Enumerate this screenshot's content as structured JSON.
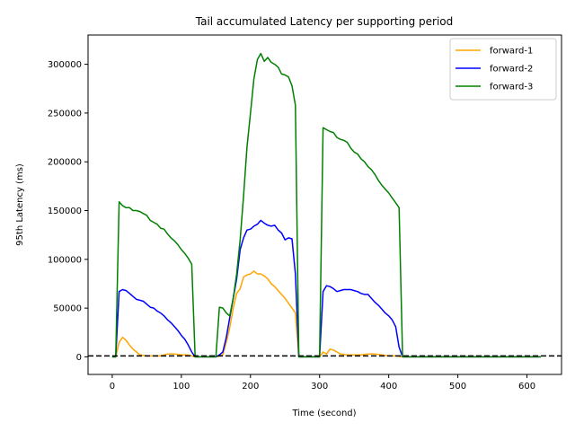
{
  "chart_data": {
    "type": "line",
    "title": "Tail accumulated Latency per supporting period",
    "xlabel": "Time (second)",
    "ylabel": "95th Latency (ms)",
    "xlim": [
      -35,
      650
    ],
    "ylim": [
      -18000,
      330000
    ],
    "xticks": [
      0,
      100,
      200,
      300,
      400,
      500,
      600
    ],
    "yticks": [
      0,
      50000,
      100000,
      150000,
      200000,
      250000,
      300000
    ],
    "grid": false,
    "legend_position": "top-right",
    "reference_line": {
      "y": 1000,
      "style": "dashed",
      "color": "#000000"
    },
    "series": [
      {
        "name": "forward-1",
        "color": "#ffa500",
        "points": [
          [
            0,
            0
          ],
          [
            5,
            0
          ],
          [
            10,
            15000
          ],
          [
            15,
            20000
          ],
          [
            20,
            17000
          ],
          [
            25,
            12000
          ],
          [
            30,
            8000
          ],
          [
            35,
            5000
          ],
          [
            40,
            2000
          ],
          [
            50,
            1000
          ],
          [
            60,
            1000
          ],
          [
            70,
            1000
          ],
          [
            80,
            3000
          ],
          [
            90,
            3000
          ],
          [
            100,
            2000
          ],
          [
            110,
            2000
          ],
          [
            120,
            0
          ],
          [
            150,
            0
          ],
          [
            155,
            1000
          ],
          [
            160,
            2000
          ],
          [
            165,
            15000
          ],
          [
            170,
            30000
          ],
          [
            175,
            50000
          ],
          [
            180,
            65000
          ],
          [
            185,
            70000
          ],
          [
            190,
            82000
          ],
          [
            195,
            84000
          ],
          [
            200,
            85000
          ],
          [
            205,
            88000
          ],
          [
            210,
            85000
          ],
          [
            215,
            85000
          ],
          [
            220,
            83000
          ],
          [
            225,
            80000
          ],
          [
            230,
            75000
          ],
          [
            235,
            72000
          ],
          [
            240,
            68000
          ],
          [
            245,
            64000
          ],
          [
            250,
            60000
          ],
          [
            255,
            55000
          ],
          [
            260,
            50000
          ],
          [
            265,
            45000
          ],
          [
            270,
            0
          ],
          [
            300,
            0
          ],
          [
            305,
            5000
          ],
          [
            310,
            3000
          ],
          [
            315,
            8000
          ],
          [
            320,
            7000
          ],
          [
            325,
            5000
          ],
          [
            330,
            3000
          ],
          [
            340,
            2000
          ],
          [
            350,
            2000
          ],
          [
            360,
            2000
          ],
          [
            370,
            3000
          ],
          [
            380,
            3000
          ],
          [
            390,
            2000
          ],
          [
            400,
            1000
          ],
          [
            410,
            1000
          ],
          [
            420,
            0
          ],
          [
            620,
            0
          ]
        ]
      },
      {
        "name": "forward-2",
        "color": "#0000ff",
        "points": [
          [
            0,
            0
          ],
          [
            5,
            0
          ],
          [
            10,
            67000
          ],
          [
            15,
            69000
          ],
          [
            20,
            68000
          ],
          [
            25,
            65000
          ],
          [
            30,
            62000
          ],
          [
            35,
            59000
          ],
          [
            40,
            58000
          ],
          [
            45,
            57000
          ],
          [
            50,
            54000
          ],
          [
            55,
            51000
          ],
          [
            60,
            50000
          ],
          [
            65,
            47000
          ],
          [
            70,
            45000
          ],
          [
            75,
            42000
          ],
          [
            80,
            38000
          ],
          [
            85,
            35000
          ],
          [
            90,
            31000
          ],
          [
            95,
            27000
          ],
          [
            100,
            22000
          ],
          [
            105,
            18000
          ],
          [
            110,
            12000
          ],
          [
            115,
            5000
          ],
          [
            120,
            0
          ],
          [
            150,
            0
          ],
          [
            155,
            2000
          ],
          [
            160,
            5000
          ],
          [
            165,
            20000
          ],
          [
            170,
            40000
          ],
          [
            175,
            60000
          ],
          [
            180,
            80000
          ],
          [
            185,
            110000
          ],
          [
            190,
            122000
          ],
          [
            195,
            130000
          ],
          [
            200,
            131000
          ],
          [
            205,
            134000
          ],
          [
            210,
            136000
          ],
          [
            215,
            140000
          ],
          [
            220,
            137000
          ],
          [
            225,
            135000
          ],
          [
            230,
            134000
          ],
          [
            235,
            135000
          ],
          [
            240,
            130000
          ],
          [
            245,
            127000
          ],
          [
            250,
            120000
          ],
          [
            255,
            122000
          ],
          [
            260,
            121000
          ],
          [
            265,
            85000
          ],
          [
            270,
            0
          ],
          [
            300,
            0
          ],
          [
            305,
            67000
          ],
          [
            310,
            73000
          ],
          [
            315,
            72000
          ],
          [
            320,
            70000
          ],
          [
            325,
            67000
          ],
          [
            330,
            68000
          ],
          [
            335,
            69000
          ],
          [
            340,
            69000
          ],
          [
            345,
            69000
          ],
          [
            350,
            68000
          ],
          [
            355,
            67000
          ],
          [
            360,
            65000
          ],
          [
            365,
            64000
          ],
          [
            370,
            64000
          ],
          [
            375,
            60000
          ],
          [
            380,
            56000
          ],
          [
            385,
            53000
          ],
          [
            390,
            49000
          ],
          [
            395,
            45000
          ],
          [
            400,
            42000
          ],
          [
            405,
            38000
          ],
          [
            410,
            31000
          ],
          [
            415,
            10000
          ],
          [
            420,
            0
          ],
          [
            620,
            0
          ]
        ]
      },
      {
        "name": "forward-3",
        "color": "#008000",
        "points": [
          [
            0,
            0
          ],
          [
            5,
            0
          ],
          [
            10,
            159000
          ],
          [
            15,
            155000
          ],
          [
            20,
            153000
          ],
          [
            25,
            153000
          ],
          [
            30,
            150000
          ],
          [
            35,
            150000
          ],
          [
            40,
            149000
          ],
          [
            45,
            147000
          ],
          [
            50,
            145000
          ],
          [
            55,
            140000
          ],
          [
            60,
            138000
          ],
          [
            65,
            136000
          ],
          [
            70,
            132000
          ],
          [
            75,
            131000
          ],
          [
            80,
            126000
          ],
          [
            85,
            122000
          ],
          [
            90,
            119000
          ],
          [
            95,
            115000
          ],
          [
            100,
            110000
          ],
          [
            105,
            106000
          ],
          [
            110,
            101000
          ],
          [
            115,
            95000
          ],
          [
            120,
            0
          ],
          [
            150,
            0
          ],
          [
            155,
            51000
          ],
          [
            160,
            50000
          ],
          [
            165,
            45000
          ],
          [
            170,
            42000
          ],
          [
            175,
            60000
          ],
          [
            180,
            85000
          ],
          [
            185,
            120000
          ],
          [
            190,
            165000
          ],
          [
            195,
            215000
          ],
          [
            200,
            250000
          ],
          [
            205,
            285000
          ],
          [
            210,
            305000
          ],
          [
            215,
            311000
          ],
          [
            220,
            303000
          ],
          [
            225,
            307000
          ],
          [
            230,
            302000
          ],
          [
            235,
            300000
          ],
          [
            240,
            297000
          ],
          [
            245,
            290000
          ],
          [
            250,
            289000
          ],
          [
            255,
            287000
          ],
          [
            260,
            278000
          ],
          [
            265,
            258000
          ],
          [
            270,
            0
          ],
          [
            300,
            0
          ],
          [
            305,
            235000
          ],
          [
            310,
            233000
          ],
          [
            315,
            231000
          ],
          [
            320,
            230000
          ],
          [
            325,
            225000
          ],
          [
            330,
            223000
          ],
          [
            335,
            222000
          ],
          [
            340,
            220000
          ],
          [
            345,
            214000
          ],
          [
            350,
            210000
          ],
          [
            355,
            208000
          ],
          [
            360,
            203000
          ],
          [
            365,
            200000
          ],
          [
            370,
            195000
          ],
          [
            375,
            192000
          ],
          [
            380,
            187000
          ],
          [
            385,
            181000
          ],
          [
            390,
            176000
          ],
          [
            395,
            172000
          ],
          [
            400,
            168000
          ],
          [
            405,
            163000
          ],
          [
            410,
            158000
          ],
          [
            415,
            153000
          ],
          [
            420,
            0
          ],
          [
            620,
            0
          ]
        ]
      }
    ]
  }
}
